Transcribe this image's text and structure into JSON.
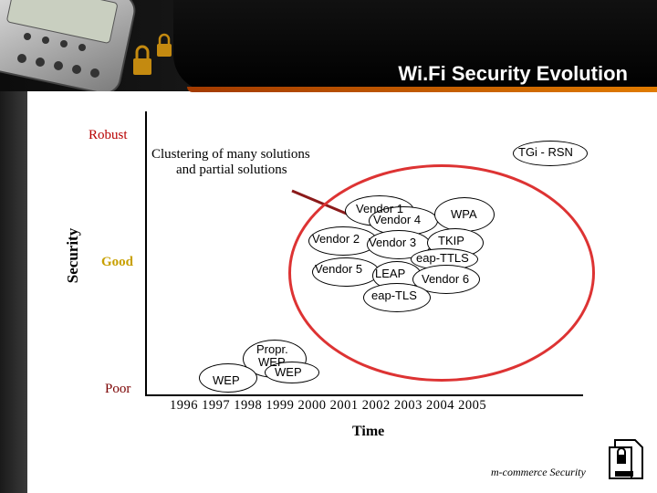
{
  "header": {
    "title": "Wi.Fi Security Evolution"
  },
  "axes": {
    "y_label": "Security",
    "y_levels": {
      "robust": "Robust",
      "good": "Good",
      "poor": "Poor"
    },
    "x_label": "Time",
    "years": "1996 1997 1998 1999 2000 2001 2002 2003 2004 2005"
  },
  "annotation": {
    "line1": "Clustering of many solutions",
    "line2": "and partial solutions"
  },
  "nodes": {
    "tgi": "TGi - RSN",
    "vendor1": "Vendor 1",
    "vendor4": "Vendor 4",
    "wpa": "WPA",
    "vendor2": "Vendor 2",
    "vendor3": "Vendor 3",
    "tkip": "TKIP",
    "eap_ttls": "eap-TTLS",
    "vendor5": "Vendor 5",
    "leap": "LEAP",
    "vendor6": "Vendor 6",
    "eap_tls": "eap-TLS",
    "propr_wep_1": "Propr.",
    "propr_wep_2": "WEP",
    "wep_left": "WEP",
    "wep_right": "WEP"
  },
  "footer": {
    "text": "m-commerce Security"
  },
  "colors": {
    "level_robust": "#b80000",
    "level_good": "#c8a000",
    "level_poor": "#7a0000",
    "cluster_ring": "#d33333"
  }
}
